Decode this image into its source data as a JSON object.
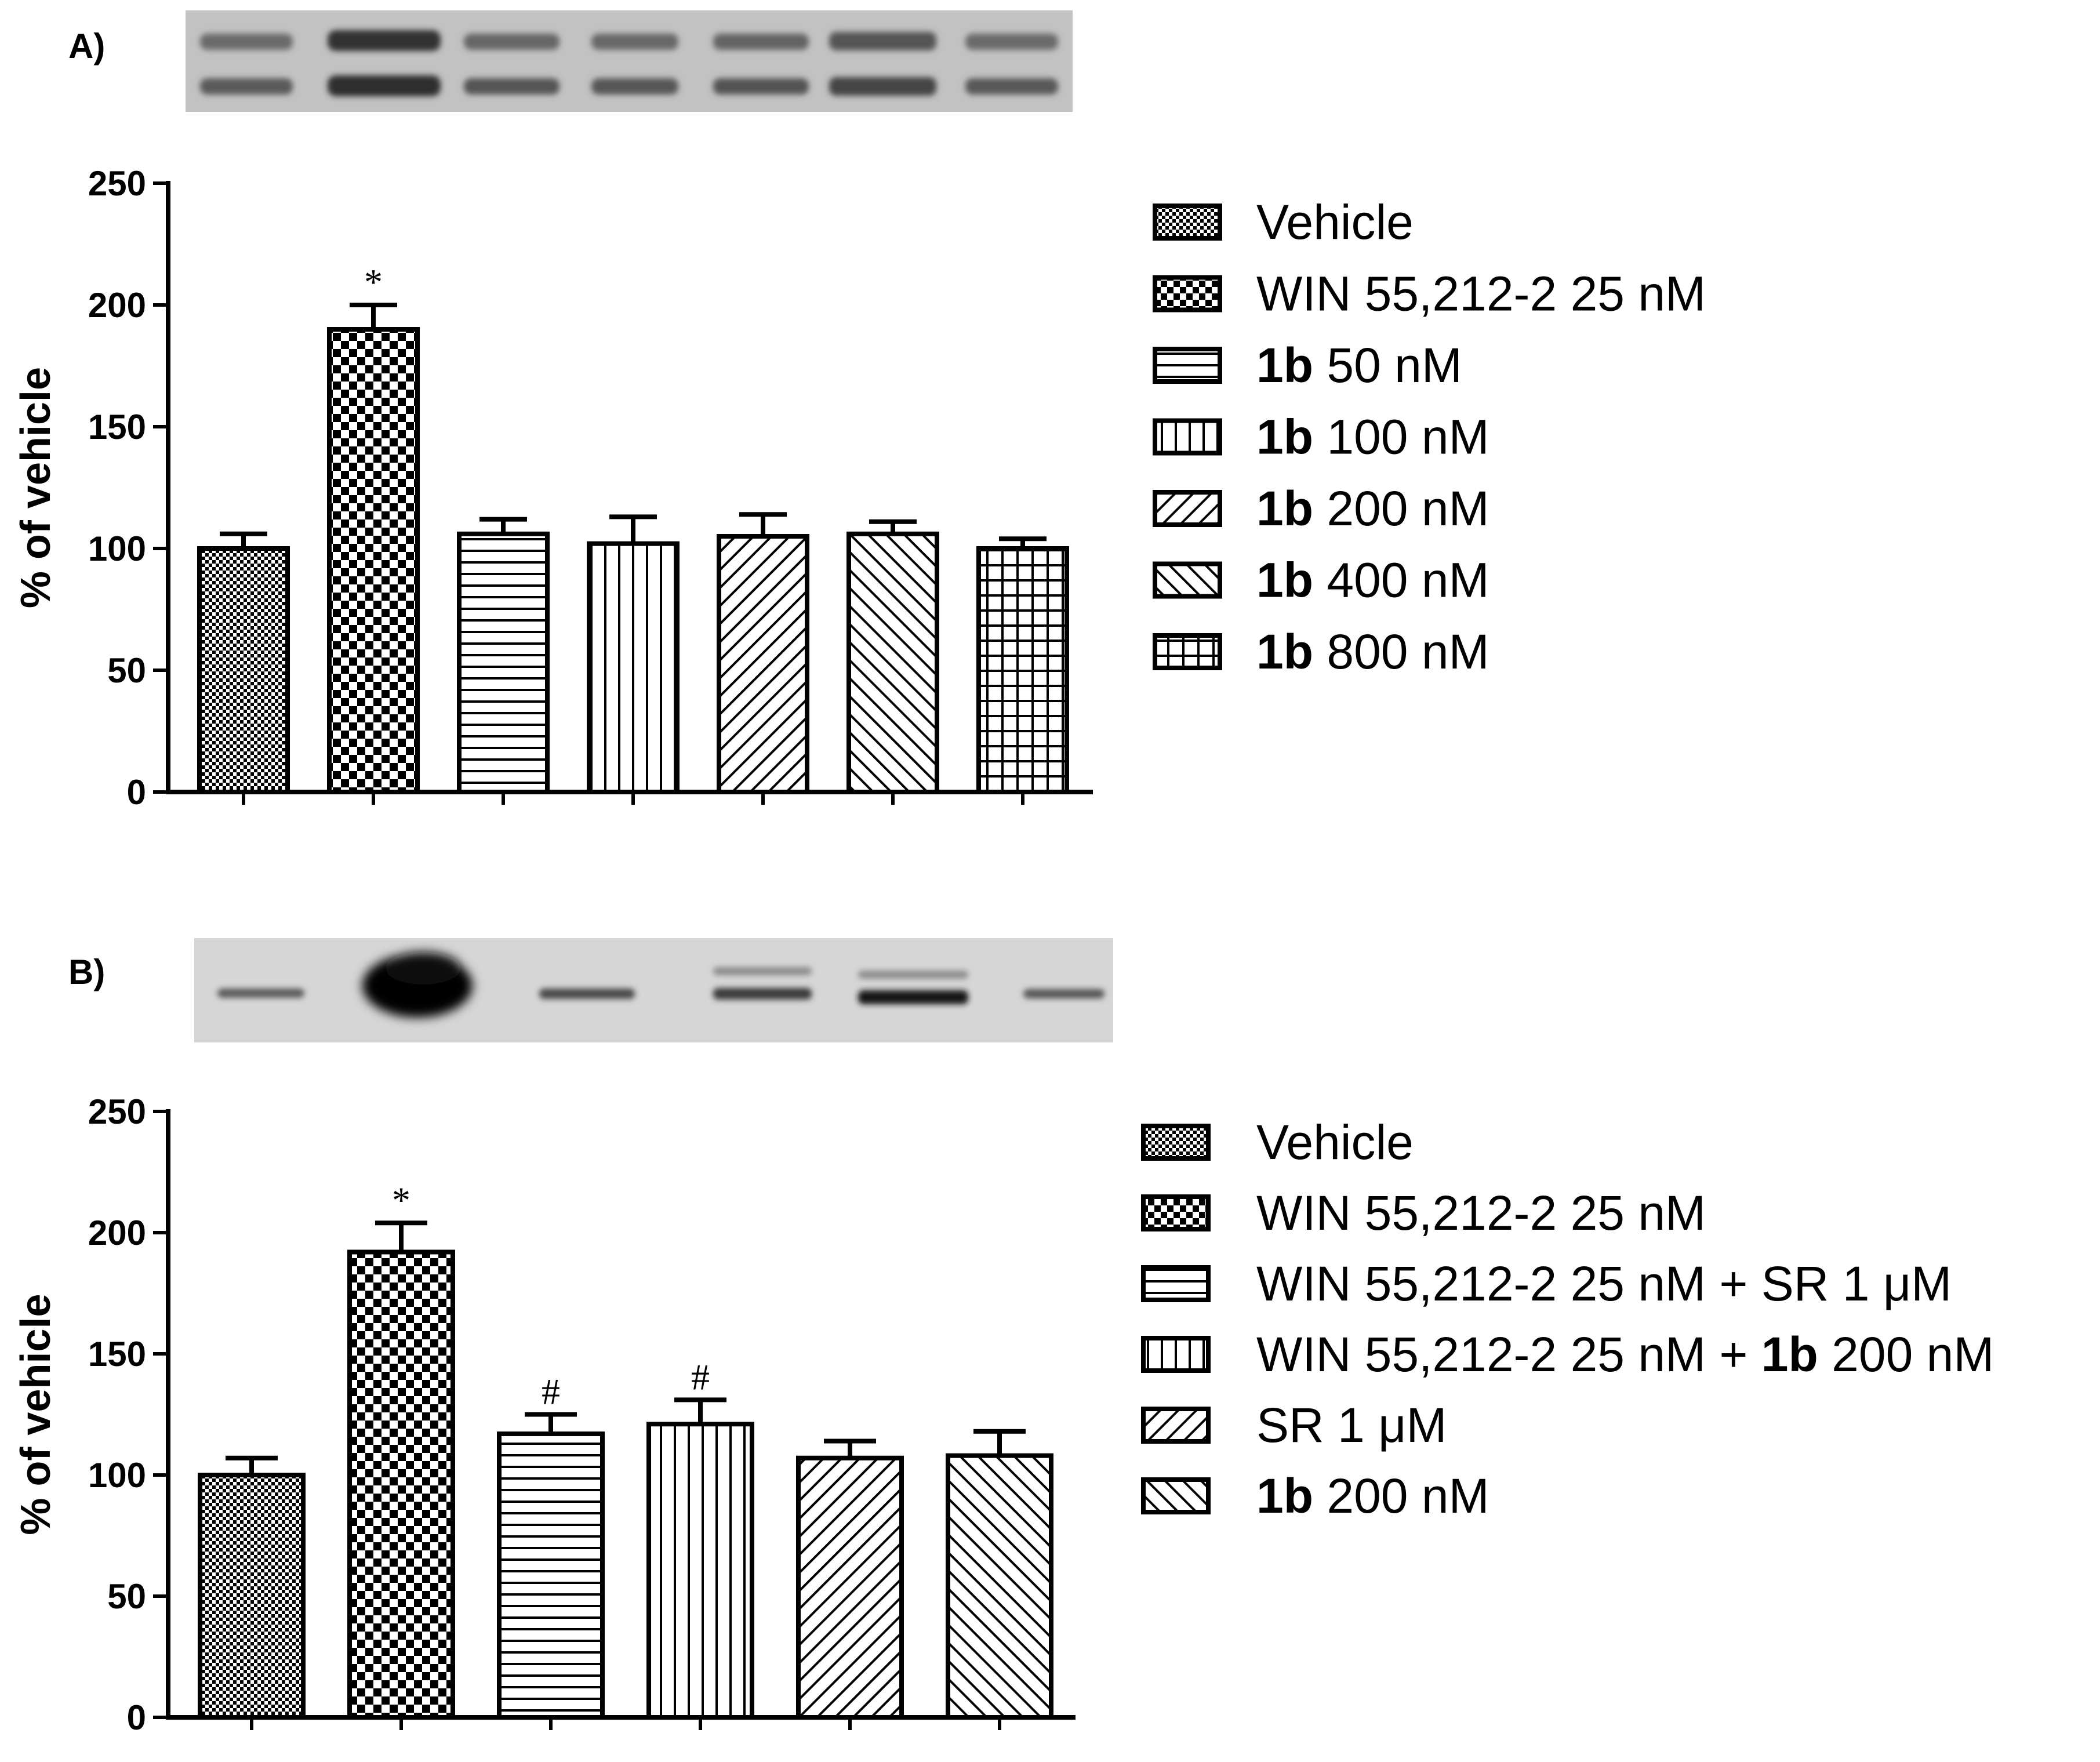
{
  "chart_data": [
    {
      "panel_label": "A)",
      "type": "bar",
      "ylabel": "% of vehicle",
      "ylim": [
        0,
        250
      ],
      "yticks": [
        0,
        50,
        100,
        150,
        200,
        250
      ],
      "bars": [
        {
          "name": "Vehicle",
          "legend_bold": "",
          "legend_rest": "Vehicle",
          "value": 100,
          "error": 6,
          "pattern": "fine-check",
          "annotation": ""
        },
        {
          "name": "WIN 55,212-2  25 nM",
          "legend_bold": "",
          "legend_rest": "WIN 55,212-2  25 nM",
          "value": 190,
          "error": 10,
          "pattern": "coarse-check",
          "annotation": "*"
        },
        {
          "name": "1b 50 nM",
          "legend_bold": "1b",
          "legend_rest": " 50 nM",
          "value": 106,
          "error": 6,
          "pattern": "horizontal",
          "annotation": ""
        },
        {
          "name": "1b 100 nM",
          "legend_bold": "1b",
          "legend_rest": " 100 nM",
          "value": 102,
          "error": 11,
          "pattern": "vertical",
          "annotation": ""
        },
        {
          "name": "1b 200 nM",
          "legend_bold": "1b",
          "legend_rest": " 200 nM",
          "value": 105,
          "error": 9,
          "pattern": "diag-right",
          "annotation": ""
        },
        {
          "name": "1b 400 nM",
          "legend_bold": "1b",
          "legend_rest": " 400 nM",
          "value": 106,
          "error": 5,
          "pattern": "diag-left",
          "annotation": ""
        },
        {
          "name": "1b 800 nM",
          "legend_bold": "1b",
          "legend_rest": " 800 nM",
          "value": 100,
          "error": 4,
          "pattern": "grid",
          "annotation": ""
        }
      ]
    },
    {
      "panel_label": "B)",
      "type": "bar",
      "ylabel": "% of vehicle",
      "ylim": [
        0,
        250
      ],
      "yticks": [
        0,
        50,
        100,
        150,
        200,
        250
      ],
      "bars": [
        {
          "name": "Vehicle",
          "legend_bold": "",
          "legend_rest": "Vehicle",
          "legend_tail_bold": "",
          "legend_tail": "",
          "value": 100,
          "error": 7,
          "pattern": "fine-check",
          "annotation": ""
        },
        {
          "name": "WIN 55,212-2  25 nM",
          "legend_bold": "",
          "legend_rest": "WIN 55,212-2  25 nM",
          "legend_tail_bold": "",
          "legend_tail": "",
          "value": 192,
          "error": 12,
          "pattern": "coarse-check",
          "annotation": "*"
        },
        {
          "name": "WIN 55,212-2  25 nM + SR 1 μM",
          "legend_bold": "",
          "legend_rest": "WIN 55,212-2  25 nM + SR 1 μM",
          "legend_tail_bold": "",
          "legend_tail": "",
          "value": 117,
          "error": 8,
          "pattern": "horizontal",
          "annotation": "#"
        },
        {
          "name": "WIN 55,212-2  25 nM + 1b 200 nM",
          "legend_bold": "",
          "legend_rest": "WIN 55,212-2  25 nM + ",
          "legend_tail_bold": "1b",
          "legend_tail": " 200 nM",
          "value": 121,
          "error": 10,
          "pattern": "vertical",
          "annotation": "#"
        },
        {
          "name": "SR 1 μM",
          "legend_bold": "",
          "legend_rest": "SR 1 μM",
          "legend_tail_bold": "",
          "legend_tail": "",
          "value": 107,
          "error": 7,
          "pattern": "diag-right",
          "annotation": ""
        },
        {
          "name": "1b 200 nM",
          "legend_bold": "1b",
          "legend_rest": " 200 nM",
          "legend_tail_bold": "",
          "legend_tail": "",
          "value": 108,
          "error": 10,
          "pattern": "diag-left",
          "annotation": ""
        }
      ]
    }
  ]
}
